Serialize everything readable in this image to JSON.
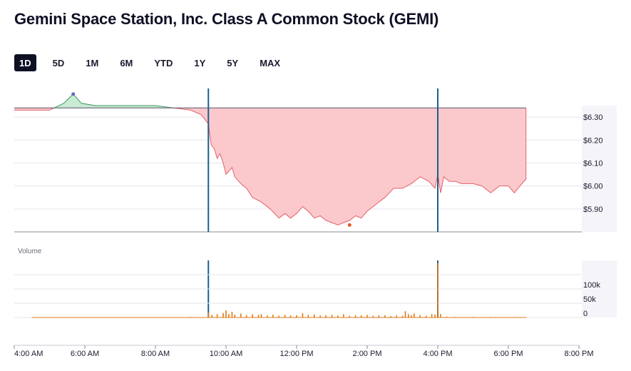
{
  "title": "Gemini Space Station, Inc. Class A Common Stock (GEMI)",
  "tabs": [
    {
      "label": "1D",
      "active": true
    },
    {
      "label": "5D",
      "active": false
    },
    {
      "label": "1M",
      "active": false
    },
    {
      "label": "6M",
      "active": false
    },
    {
      "label": "YTD",
      "active": false
    },
    {
      "label": "1Y",
      "active": false
    },
    {
      "label": "5Y",
      "active": false
    },
    {
      "label": "MAX",
      "active": false
    }
  ],
  "colors": {
    "up_fill": "#c9ead4",
    "up_line": "#3c9a5f",
    "down_fill": "#fbc9cc",
    "down_line": "#e5606b",
    "session_marker": "#1d5f8c",
    "volume": "#e07a16",
    "grid": "#e6e6ee",
    "axis_band": "#f4f4f9"
  },
  "chart_data": [
    {
      "type": "area",
      "name": "price",
      "baseline": 6.34,
      "ylim": [
        5.8,
        6.35
      ],
      "y_ticks": [
        "$6.30",
        "$6.20",
        "$6.10",
        "$6.00",
        "$5.90"
      ],
      "y_tick_values": [
        6.3,
        6.2,
        6.1,
        6.0,
        5.9
      ],
      "session_markers": [
        "9:30 AM",
        "4:00 PM"
      ],
      "x_hours": [
        4.0,
        5.0,
        5.4,
        5.67,
        5.9,
        6.3,
        7.0,
        8.0,
        8.5,
        9.0,
        9.3,
        9.5,
        9.58,
        9.67,
        9.75,
        9.83,
        9.92,
        10.0,
        10.17,
        10.25,
        10.42,
        10.58,
        10.75,
        11.0,
        11.25,
        11.5,
        11.67,
        11.83,
        12.0,
        12.17,
        12.33,
        12.5,
        12.67,
        12.83,
        13.0,
        13.17,
        13.33,
        13.5,
        13.67,
        13.83,
        14.0,
        14.25,
        14.5,
        14.75,
        15.0,
        15.25,
        15.5,
        15.75,
        15.92,
        16.0,
        16.08,
        16.17,
        16.33,
        16.5,
        16.67,
        16.83,
        17.0,
        17.25,
        17.5,
        17.75,
        18.0,
        18.17,
        18.33,
        18.5
      ],
      "values": [
        6.33,
        6.33,
        6.36,
        6.4,
        6.36,
        6.35,
        6.35,
        6.35,
        6.34,
        6.33,
        6.31,
        6.27,
        6.18,
        6.16,
        6.12,
        6.14,
        6.1,
        6.05,
        6.08,
        6.04,
        6.01,
        5.99,
        5.95,
        5.93,
        5.9,
        5.86,
        5.88,
        5.86,
        5.88,
        5.91,
        5.89,
        5.86,
        5.87,
        5.85,
        5.84,
        5.83,
        5.84,
        5.85,
        5.87,
        5.86,
        5.89,
        5.92,
        5.95,
        5.99,
        5.99,
        6.01,
        6.04,
        6.02,
        5.99,
        6.05,
        5.97,
        6.04,
        6.02,
        6.02,
        6.01,
        6.01,
        6.01,
        6.0,
        5.97,
        6.0,
        6.0,
        5.97,
        6.0,
        6.03
      ],
      "high_point": {
        "x_hour": 5.67,
        "value": 6.4
      },
      "low_point": {
        "x_hour": 13.5,
        "value": 5.83
      }
    },
    {
      "type": "bar",
      "name": "Volume",
      "ylabel": "Volume",
      "y_ticks": [
        "100k",
        "50k",
        "0"
      ],
      "y_tick_values": [
        100000,
        50000,
        0
      ],
      "ylim": [
        0,
        200000
      ],
      "x_hours": [
        4.5,
        6.0,
        8.0,
        9.0,
        9.5,
        9.6,
        9.75,
        9.92,
        10.0,
        10.08,
        10.17,
        10.25,
        10.42,
        10.58,
        10.75,
        10.92,
        11.0,
        11.17,
        11.33,
        11.5,
        11.67,
        11.83,
        12.0,
        12.17,
        12.33,
        12.5,
        12.67,
        12.83,
        13.0,
        13.17,
        13.33,
        13.5,
        13.67,
        13.83,
        14.0,
        14.17,
        14.33,
        14.5,
        14.67,
        14.83,
        15.0,
        15.08,
        15.17,
        15.25,
        15.33,
        15.5,
        15.67,
        15.83,
        15.92,
        16.0,
        16.08,
        16.25,
        16.5,
        17.0,
        17.5,
        18.0,
        18.5
      ],
      "values": [
        1000,
        1000,
        1500,
        2000,
        18000,
        9000,
        12000,
        16000,
        25000,
        12000,
        20000,
        10000,
        14000,
        8000,
        11000,
        9000,
        12000,
        7000,
        10000,
        6000,
        9000,
        7000,
        8000,
        15000,
        9000,
        11000,
        7000,
        8000,
        9000,
        7000,
        12000,
        6000,
        8000,
        7000,
        9000,
        6000,
        7000,
        8000,
        5000,
        7000,
        6000,
        22000,
        12000,
        8000,
        14000,
        8000,
        6000,
        12000,
        10000,
        190000,
        12000,
        3000,
        2000,
        2000,
        2000,
        1500,
        1000
      ]
    }
  ],
  "x_axis_ticks": [
    "4:00 AM",
    "6:00 AM",
    "8:00 AM",
    "10:00 AM",
    "12:00 PM",
    "2:00 PM",
    "4:00 PM",
    "6:00 PM",
    "8:00 PM"
  ],
  "x_axis_tick_hours": [
    4,
    6,
    8,
    10,
    12,
    14,
    16,
    18,
    20
  ]
}
